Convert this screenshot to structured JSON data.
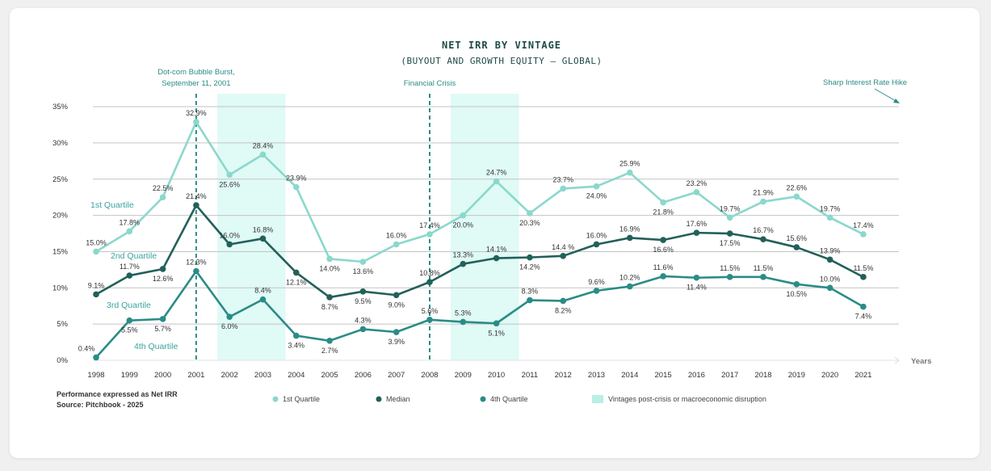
{
  "chart_data": {
    "type": "line",
    "title": "NET IRR BY VINTAGE",
    "subtitle": "(BUYOUT AND GROWTH EQUITY — GLOBAL)",
    "xlabel": "Years",
    "ylabel": "",
    "ylim": [
      0,
      35
    ],
    "yticks": [
      "0%",
      "5%",
      "10%",
      "15%",
      "20%",
      "25%",
      "30%",
      "35%"
    ],
    "grid": true,
    "legend_placement": "bottom",
    "x": [
      "1998",
      "1999",
      "2000",
      "2001",
      "2002",
      "2003",
      "2004",
      "2005",
      "2006",
      "2007",
      "2008",
      "2009",
      "2010",
      "2011",
      "2012",
      "2013",
      "2014",
      "2015",
      "2016",
      "2017",
      "2018",
      "2019",
      "2020",
      "2021"
    ],
    "series": [
      {
        "name": "1st Quartile",
        "color": "#8ad8cc",
        "values": [
          15.0,
          17.8,
          22.5,
          32.9,
          25.6,
          28.4,
          23.9,
          14.0,
          13.6,
          16.0,
          17.4,
          20.0,
          24.7,
          20.3,
          23.7,
          24.0,
          25.9,
          21.8,
          23.2,
          19.7,
          21.9,
          22.6,
          19.7,
          17.4
        ],
        "labels": [
          "15.0%",
          "17.8%",
          "22.5%",
          "32.9%",
          "25.6%",
          "28.4%",
          "23.9%",
          "14.0%",
          "13.6%",
          "16.0%",
          "17.4%",
          "20.0%",
          "24.7%",
          "20.3%",
          "23.7%",
          "24.0%",
          "25.9%",
          "21.8%",
          "23.2%",
          "19.7%",
          "21.9%",
          "22.6%",
          "19.7%",
          "17.4%"
        ]
      },
      {
        "name": "Median",
        "color": "#23605a",
        "values": [
          9.1,
          11.7,
          12.6,
          21.4,
          16.0,
          16.8,
          12.1,
          8.7,
          9.5,
          9.0,
          10.8,
          13.3,
          14.1,
          14.2,
          14.4,
          16.0,
          16.9,
          16.6,
          17.6,
          17.5,
          16.7,
          15.6,
          13.9,
          11.5
        ],
        "labels": [
          "9.1%",
          "11.7%",
          "12.6%",
          "21.4%",
          "16.0%",
          "16.8%",
          "12.1%",
          "8.7%",
          "9.5%",
          "9.0%",
          "10.8%",
          "13.3%",
          "14.1%",
          "14.2%",
          "14.4 %",
          "16.0%",
          "16.9%",
          "16.6%",
          "17.6%",
          "17.5%",
          "16.7%",
          "15.6%",
          "13.9%",
          "11.5%"
        ]
      },
      {
        "name": "4th Quartile",
        "color": "#2a8c86",
        "values": [
          0.4,
          5.5,
          5.7,
          12.3,
          6.0,
          8.4,
          3.4,
          2.7,
          4.3,
          3.9,
          5.6,
          5.3,
          5.1,
          8.3,
          8.2,
          9.6,
          10.2,
          11.6,
          11.4,
          11.5,
          11.5,
          10.5,
          10.0,
          7.4
        ],
        "labels": [
          "0.4%",
          "5.5%",
          "5.7%",
          "12.3%",
          "6.0%",
          "8.4%",
          "3.4%",
          "2.7%",
          "4.3%",
          "3.9%",
          "5.6%",
          "5.3%",
          "5.1%",
          "8.3%",
          "8.2%",
          "9.6%",
          "10.2%",
          "11.6%",
          "11.4%",
          "11.5%",
          "11.5%",
          "10.5%",
          "10.0%",
          "7.4%"
        ]
      }
    ],
    "quartile_labels": [
      "1st Quartile",
      "2nd Quartile",
      "3rd Quartile",
      "4th Quartile"
    ],
    "shaded_periods": [
      [
        "2001",
        "2003"
      ],
      [
        "2008",
        "2010"
      ]
    ],
    "shade_color": "#e0faf6",
    "events": [
      {
        "year": "2001",
        "label_line1": "Dot-com Bubble Burst,",
        "label_line2": "September 11, 2001"
      },
      {
        "year": "2008",
        "label_line1": "Financial Crisis",
        "label_line2": ""
      }
    ],
    "arrow_annotation": "Sharp Interest Rate Hike",
    "legend": {
      "q1": "1st Quartile",
      "median": "Median",
      "q4": "4th Quartile",
      "shade": "Vintages post-crisis or macroeconomic disruption"
    },
    "footnote": {
      "line1": "Performance expressed as Net IRR",
      "line2": "Source: Pitchbook - 2025"
    }
  }
}
